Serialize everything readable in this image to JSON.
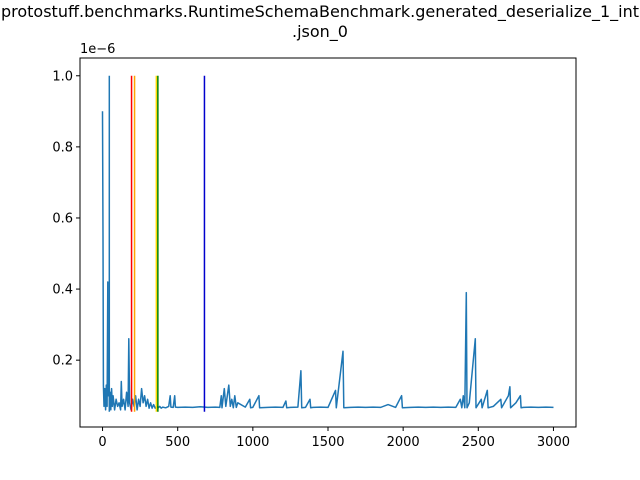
{
  "chart_data": {
    "type": "line",
    "title": [
      "protostuff.benchmarks.RuntimeSchemaBenchmark.generated_deserialize_1_int",
      ".json_0"
    ],
    "y_offset_label": "1e−6",
    "xlim": [
      -150,
      3150
    ],
    "ylim": [
      0.012,
      1.05
    ],
    "x_ticks": [
      0,
      500,
      1000,
      1500,
      2000,
      2500,
      3000
    ],
    "x_tick_labels": [
      "0",
      "500",
      "1000",
      "1500",
      "2000",
      "2500",
      "3000"
    ],
    "y_ticks": [
      0.2,
      0.4,
      0.6,
      0.8,
      1.0
    ],
    "y_tick_labels": [
      "0.2",
      "0.4",
      "0.6",
      "0.8",
      "1.0"
    ],
    "grid": false,
    "series": [
      {
        "color": "#1f77b4",
        "points": [
          [
            0,
            0.9
          ],
          [
            3,
            0.55
          ],
          [
            6,
            0.13
          ],
          [
            10,
            0.07
          ],
          [
            15,
            0.12
          ],
          [
            20,
            0.06
          ],
          [
            25,
            0.13
          ],
          [
            30,
            0.07
          ],
          [
            35,
            0.42
          ],
          [
            38,
            0.1
          ],
          [
            42,
            0.2
          ],
          [
            46,
            0.07
          ],
          [
            50,
            0.11
          ],
          [
            55,
            0.06
          ],
          [
            60,
            0.12
          ],
          [
            65,
            0.07
          ],
          [
            70,
            0.1
          ],
          [
            80,
            0.06
          ],
          [
            90,
            0.09
          ],
          [
            100,
            0.07
          ],
          [
            110,
            0.08
          ],
          [
            120,
            0.06
          ],
          [
            125,
            0.14
          ],
          [
            130,
            0.07
          ],
          [
            140,
            0.09
          ],
          [
            150,
            0.06
          ],
          [
            160,
            0.11
          ],
          [
            170,
            0.07
          ],
          [
            175,
            0.26
          ],
          [
            180,
            0.08
          ],
          [
            190,
            0.06
          ],
          [
            200,
            0.09
          ],
          [
            210,
            0.07
          ],
          [
            220,
            0.1
          ],
          [
            230,
            0.06
          ],
          [
            240,
            0.09
          ],
          [
            250,
            0.07
          ],
          [
            260,
            0.12
          ],
          [
            270,
            0.08
          ],
          [
            280,
            0.1
          ],
          [
            290,
            0.07
          ],
          [
            300,
            0.09
          ],
          [
            310,
            0.065
          ],
          [
            320,
            0.08
          ],
          [
            330,
            0.065
          ],
          [
            340,
            0.075
          ],
          [
            350,
            0.065
          ],
          [
            360,
            0.07
          ],
          [
            370,
            0.066
          ],
          [
            380,
            0.07
          ],
          [
            390,
            0.065
          ],
          [
            400,
            0.068
          ],
          [
            420,
            0.066
          ],
          [
            440,
            0.07
          ],
          [
            450,
            0.1
          ],
          [
            455,
            0.068
          ],
          [
            470,
            0.067
          ],
          [
            480,
            0.1
          ],
          [
            485,
            0.068
          ],
          [
            500,
            0.067
          ],
          [
            550,
            0.068
          ],
          [
            600,
            0.067
          ],
          [
            650,
            0.069
          ],
          [
            700,
            0.067
          ],
          [
            750,
            0.068
          ],
          [
            780,
            0.067
          ],
          [
            790,
            0.1
          ],
          [
            795,
            0.066
          ],
          [
            810,
            0.12
          ],
          [
            820,
            0.07
          ],
          [
            840,
            0.13
          ],
          [
            850,
            0.07
          ],
          [
            860,
            0.09
          ],
          [
            870,
            0.066
          ],
          [
            880,
            0.1
          ],
          [
            890,
            0.067
          ],
          [
            900,
            0.08
          ],
          [
            950,
            0.068
          ],
          [
            980,
            0.09
          ],
          [
            985,
            0.066
          ],
          [
            1000,
            0.067
          ],
          [
            1040,
            0.1
          ],
          [
            1045,
            0.066
          ],
          [
            1100,
            0.067
          ],
          [
            1150,
            0.068
          ],
          [
            1200,
            0.067
          ],
          [
            1220,
            0.085
          ],
          [
            1225,
            0.066
          ],
          [
            1250,
            0.067
          ],
          [
            1300,
            0.068
          ],
          [
            1320,
            0.17
          ],
          [
            1325,
            0.066
          ],
          [
            1350,
            0.067
          ],
          [
            1380,
            0.09
          ],
          [
            1385,
            0.066
          ],
          [
            1400,
            0.067
          ],
          [
            1450,
            0.068
          ],
          [
            1500,
            0.067
          ],
          [
            1550,
            0.115
          ],
          [
            1555,
            0.066
          ],
          [
            1600,
            0.225
          ],
          [
            1605,
            0.066
          ],
          [
            1650,
            0.067
          ],
          [
            1700,
            0.068
          ],
          [
            1750,
            0.067
          ],
          [
            1800,
            0.068
          ],
          [
            1850,
            0.067
          ],
          [
            1900,
            0.075
          ],
          [
            1950,
            0.067
          ],
          [
            1990,
            0.1
          ],
          [
            1995,
            0.066
          ],
          [
            2050,
            0.067
          ],
          [
            2100,
            0.068
          ],
          [
            2150,
            0.067
          ],
          [
            2200,
            0.068
          ],
          [
            2250,
            0.067
          ],
          [
            2300,
            0.068
          ],
          [
            2350,
            0.067
          ],
          [
            2380,
            0.09
          ],
          [
            2390,
            0.066
          ],
          [
            2400,
            0.1
          ],
          [
            2410,
            0.066
          ],
          [
            2420,
            0.39
          ],
          [
            2425,
            0.066
          ],
          [
            2440,
            0.08
          ],
          [
            2480,
            0.26
          ],
          [
            2485,
            0.066
          ],
          [
            2520,
            0.09
          ],
          [
            2525,
            0.066
          ],
          [
            2560,
            0.115
          ],
          [
            2565,
            0.066
          ],
          [
            2600,
            0.07
          ],
          [
            2650,
            0.09
          ],
          [
            2655,
            0.066
          ],
          [
            2700,
            0.1
          ],
          [
            2710,
            0.125
          ],
          [
            2715,
            0.066
          ],
          [
            2750,
            0.08
          ],
          [
            2780,
            0.1
          ],
          [
            2785,
            0.066
          ],
          [
            2800,
            0.067
          ],
          [
            2850,
            0.068
          ],
          [
            2900,
            0.067
          ],
          [
            2950,
            0.068
          ],
          [
            3000,
            0.067
          ]
        ]
      }
    ],
    "vertical_lines": [
      {
        "x": 45,
        "y0": 0.055,
        "y1": 1.0,
        "color": "#1f77b4"
      },
      {
        "x": 193,
        "y0": 0.055,
        "y1": 1.0,
        "color": "#ff0000"
      },
      {
        "x": 213,
        "y0": 0.055,
        "y1": 1.0,
        "color": "#ffa500"
      },
      {
        "x": 358,
        "y0": 0.055,
        "y1": 1.0,
        "color": "#ffd700"
      },
      {
        "x": 368,
        "y0": 0.055,
        "y1": 1.0,
        "color": "#008000"
      },
      {
        "x": 678,
        "y0": 0.055,
        "y1": 1.0,
        "color": "#0000cd"
      }
    ]
  }
}
